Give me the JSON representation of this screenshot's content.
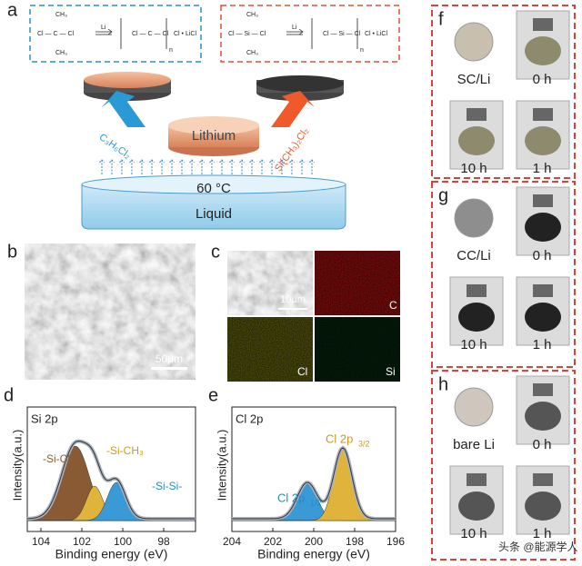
{
  "panels": {
    "a": {
      "letter": "a",
      "lithium": "Lithium",
      "temperature": "60 °C",
      "liquid": "Liquid",
      "left_reagent": "C₃H₆Cl₂",
      "right_reagent": "Si(CH₃)₂Cl₂",
      "left_scheme": {
        "top": "CH₃",
        "chain": "Cl — C — Cl",
        "bottom": "CH₃",
        "reagent": "Li",
        "product": "Cl • LiCl",
        "repeat": "n"
      },
      "right_scheme": {
        "top": "CH₃",
        "chain": "Cl — Si — Cl",
        "bottom": "CH₃",
        "reagent": "Li",
        "product": "Cl • LiCl",
        "repeat": "n"
      }
    },
    "b": {
      "letter": "b",
      "scale_bar": "50μm"
    },
    "c": {
      "letter": "c",
      "scale_bar": "10μm",
      "maps": [
        "C",
        "Cl",
        "Si"
      ]
    },
    "d": {
      "letter": "d",
      "title": "Si 2p",
      "y_label": "Intensity(a.u.)",
      "x_label": "Binding energy (eV)",
      "peaks": [
        "-Si-Cl",
        "-Si-CH₃",
        "-Si-Si-"
      ],
      "ticks": [
        "104",
        "102",
        "100",
        "98"
      ]
    },
    "e": {
      "letter": "e",
      "title": "Cl 2p",
      "y_label": "Intensity(a.u.)",
      "x_label": "Binding energy (eV)",
      "peaks": [
        {
          "name": "Cl 2p",
          "sub": "1/2"
        },
        {
          "name": "Cl 2p",
          "sub": "3/2"
        }
      ],
      "ticks": [
        "204",
        "202",
        "200",
        "198",
        "196"
      ]
    },
    "f": {
      "letter": "f",
      "labels": [
        "SC/Li",
        "0 h",
        "10 h",
        "1 h"
      ]
    },
    "g": {
      "letter": "g",
      "labels": [
        "CC/Li",
        "0 h",
        "10 h",
        "1 h"
      ]
    },
    "h": {
      "letter": "h",
      "labels": [
        "bare Li",
        "0 h",
        "10 h",
        "1 h"
      ]
    }
  },
  "watermark": "头条 @能源学人"
}
